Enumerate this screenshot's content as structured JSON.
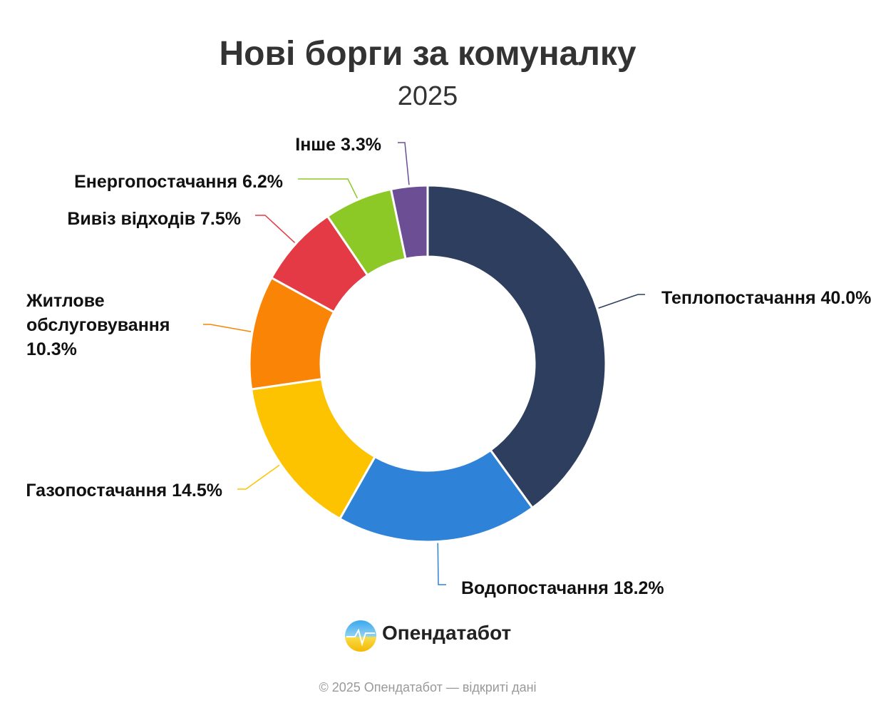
{
  "chart_data": {
    "type": "pie",
    "title": "Нові борги за комуналку",
    "subtitle": "2025",
    "categories": [
      "Теплопостачання",
      "Водопостачання",
      "Газопостачання",
      "Житлове обслуговування",
      "Вивіз відходів",
      "Енергопостачання",
      "Інше"
    ],
    "values": [
      40.0,
      18.2,
      14.5,
      10.3,
      7.5,
      6.2,
      3.3
    ],
    "value_labels": [
      "40.0%",
      "18.2%",
      "14.5%",
      "10.3%",
      "7.5%",
      "6.2%",
      "3.3%"
    ],
    "colors": [
      "#2e3e5e",
      "#2e82d8",
      "#fdc300",
      "#f98405",
      "#e43a45",
      "#8dc926",
      "#6b4e94"
    ]
  },
  "brand": "Опендатабот",
  "footer": "© 2025 Опендатабот — відкриті дані"
}
